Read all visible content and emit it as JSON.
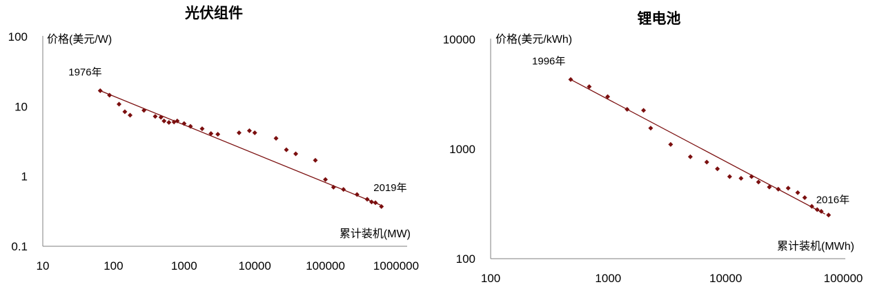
{
  "chart_data": [
    {
      "type": "scatter",
      "title": "光伏组件",
      "ylabel": "价格(美元/W)",
      "xlabel": "累计装机(MW)",
      "x_scale": "log",
      "y_scale": "log",
      "xlim": [
        10,
        1000000
      ],
      "ylim": [
        0.1,
        100
      ],
      "x_ticks": [
        "10",
        "100",
        "1000",
        "10000",
        "100000",
        "1000000"
      ],
      "y_ticks": [
        "0.1",
        "1",
        "10",
        "100"
      ],
      "annotations": [
        {
          "text": "1976年",
          "x": 65,
          "y": 16.8
        },
        {
          "text": "2019年",
          "x": 600000,
          "y": 0.4
        }
      ],
      "series": [
        {
          "points": [
            [
              65,
              16.8
            ],
            [
              88,
              14.5
            ],
            [
              120,
              10.8
            ],
            [
              145,
              8.4
            ],
            [
              172,
              7.5
            ],
            [
              270,
              8.8
            ],
            [
              390,
              7.2
            ],
            [
              470,
              7.0
            ],
            [
              520,
              6.2
            ],
            [
              610,
              5.9
            ],
            [
              720,
              6.0
            ],
            [
              800,
              6.2
            ],
            [
              1000,
              5.7
            ],
            [
              1230,
              5.2
            ],
            [
              1800,
              4.8
            ],
            [
              2400,
              4.1
            ],
            [
              3000,
              4.0
            ],
            [
              6000,
              4.2
            ],
            [
              8400,
              4.5
            ],
            [
              10000,
              4.2
            ],
            [
              20000,
              3.5
            ],
            [
              28000,
              2.4
            ],
            [
              38000,
              2.1
            ],
            [
              72000,
              1.7
            ],
            [
              100000,
              0.9
            ],
            [
              130000,
              0.7
            ],
            [
              180000,
              0.65
            ],
            [
              280000,
              0.55
            ],
            [
              390000,
              0.47
            ],
            [
              450000,
              0.43
            ],
            [
              510000,
              0.42
            ],
            [
              620000,
              0.37
            ]
          ],
          "trend": {
            "from": [
              65,
              16.8
            ],
            "to": [
              600000,
              0.39
            ]
          }
        }
      ]
    },
    {
      "type": "scatter",
      "title": "锂电池",
      "ylabel": "价格(美元/kWh)",
      "xlabel": "累计装机(MWh)",
      "x_scale": "log",
      "y_scale": "log",
      "xlim": [
        100,
        100000
      ],
      "ylim": [
        100,
        10000
      ],
      "x_ticks": [
        "100",
        "1000",
        "10000",
        "100000"
      ],
      "y_ticks": [
        "100",
        "1000",
        "10000"
      ],
      "annotations": [
        {
          "text": "1996年",
          "x": 480,
          "y": 4300
        },
        {
          "text": "2016年",
          "x": 75000,
          "y": 255
        }
      ],
      "series": [
        {
          "points": [
            [
              480,
              4300
            ],
            [
              690,
              3700
            ],
            [
              990,
              3000
            ],
            [
              1450,
              2300
            ],
            [
              2000,
              2250
            ],
            [
              2300,
              1550
            ],
            [
              3400,
              1100
            ],
            [
              5000,
              850
            ],
            [
              6900,
              760
            ],
            [
              8500,
              660
            ],
            [
              10800,
              560
            ],
            [
              13500,
              540
            ],
            [
              16600,
              560
            ],
            [
              19000,
              500
            ],
            [
              23500,
              450
            ],
            [
              28000,
              430
            ],
            [
              34000,
              440
            ],
            [
              41000,
              400
            ],
            [
              47000,
              360
            ],
            [
              54000,
              300
            ],
            [
              60000,
              280
            ],
            [
              65000,
              270
            ],
            [
              75000,
              250
            ]
          ],
          "trend": {
            "from": [
              480,
              4300
            ],
            "to": [
              70000,
              255
            ]
          }
        }
      ]
    }
  ]
}
